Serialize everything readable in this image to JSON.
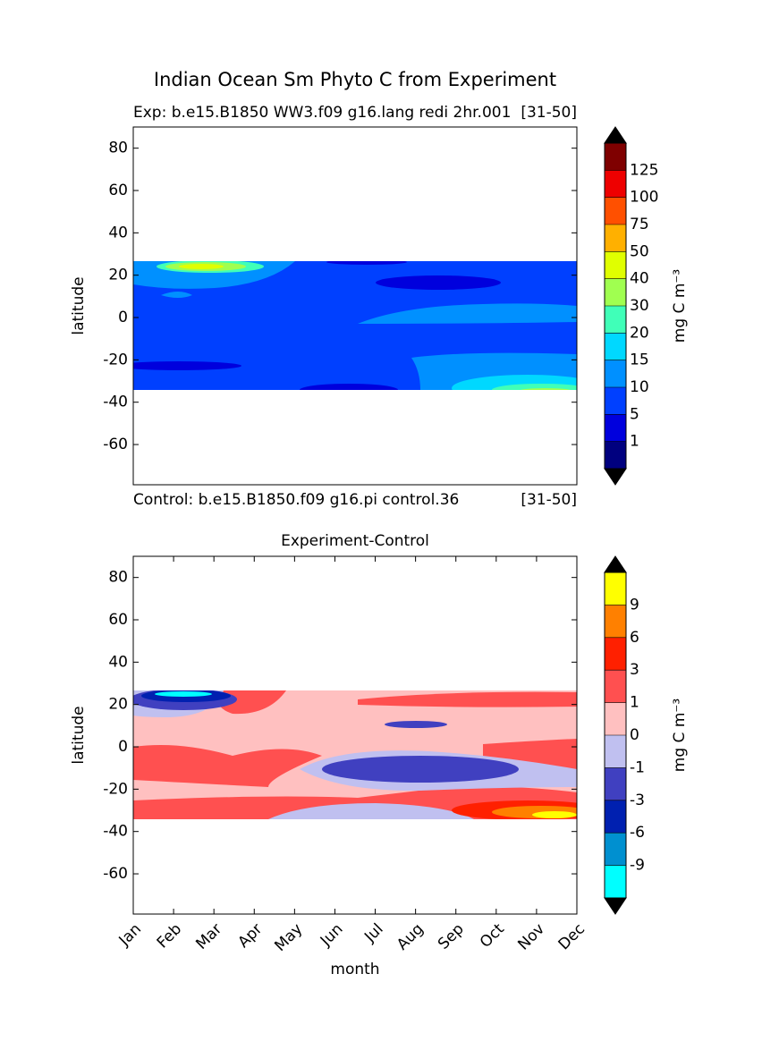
{
  "chart_data": [
    {
      "type": "contour",
      "suptitle": "Indian Ocean Sm Phyto C from Experiment",
      "title_left": "Exp: b.e15.B1850 WW3.f09 g16.lang redi 2hr.001",
      "title_right": "[31-50]",
      "footer_left": "Control: b.e15.B1850.f09 g16.pi control.36",
      "footer_right": "[31-50]",
      "ylabel": "latitude",
      "ylim": [
        -79,
        90
      ],
      "yticks": [
        -60,
        -40,
        -20,
        0,
        20,
        40,
        60,
        80
      ],
      "colorbar": {
        "label": "mg C m⁻³",
        "levels": [
          1,
          5,
          10,
          15,
          20,
          30,
          40,
          50,
          75,
          100,
          125
        ],
        "colors": [
          "#00007f",
          "#0000dd",
          "#0040ff",
          "#0090ff",
          "#00d8ff",
          "#40ffb8",
          "#a0ff50",
          "#e0ff00",
          "#ffb000",
          "#ff5000",
          "#ee0000",
          "#7f0000"
        ]
      }
    },
    {
      "type": "contour",
      "title": "Experiment-Control",
      "xlabel": "month",
      "categories": [
        "Jan",
        "Feb",
        "Mar",
        "Apr",
        "May",
        "Jun",
        "Jul",
        "Aug",
        "Sep",
        "Oct",
        "Nov",
        "Dec"
      ],
      "ylabel": "latitude",
      "ylim": [
        -79,
        90
      ],
      "yticks": [
        -60,
        -40,
        -20,
        0,
        20,
        40,
        60,
        80
      ],
      "colorbar": {
        "label": "mg C m⁻³",
        "levels": [
          -9,
          -6,
          -3,
          -1,
          0,
          1,
          3,
          6,
          9
        ],
        "colors": [
          "#00ffff",
          "#0090d0",
          "#0020b0",
          "#4040c0",
          "#c0c0f0",
          "#ffc0c0",
          "#ff5050",
          "#ff2000",
          "#ff8000",
          "#ffff00"
        ]
      }
    }
  ]
}
